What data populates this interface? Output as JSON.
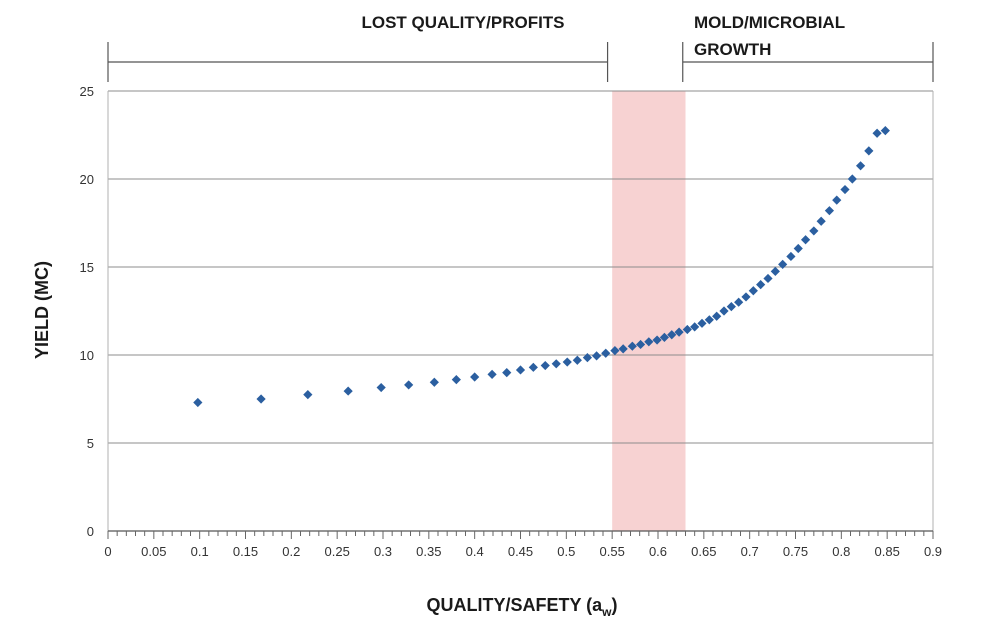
{
  "chart_data": {
    "type": "scatter",
    "title": "",
    "xlabel": "QUALITY/SAFETY (a",
    "xlabel_subscript": "w",
    "xlabel_suffix": ")",
    "ylabel": "YIELD (MC)",
    "xlim": [
      0,
      0.9
    ],
    "ylim": [
      0,
      25
    ],
    "x_ticks": [
      0,
      0.05,
      0.1,
      0.15,
      0.2,
      0.25,
      0.3,
      0.35,
      0.4,
      0.45,
      0.5,
      0.55,
      0.6,
      0.65,
      0.7,
      0.75,
      0.8,
      0.85,
      0.9
    ],
    "x_tick_labels": [
      "0",
      "0.05",
      "0.1",
      "0.15",
      "0.2",
      "0.25",
      "0.3",
      "0.35",
      "0.4",
      "0.45",
      "0.5",
      "0.55",
      "0.6",
      "0.65",
      "0.7",
      "0.75",
      "0.8",
      "0.85",
      "0.9"
    ],
    "y_ticks": [
      0,
      5,
      10,
      15,
      20,
      25
    ],
    "y_tick_labels": [
      "0",
      "5",
      "10",
      "15",
      "20",
      "25"
    ],
    "grid": "horizontal",
    "marker_color": "#2b5fa0",
    "shaded_band": {
      "x_from": 0.55,
      "x_to": 0.63,
      "color": "#f7d2d2"
    },
    "regions": [
      {
        "label": "LOST QUALITY/PROFITS",
        "x_from": 0.0,
        "x_to": 0.545
      },
      {
        "label_line1": "MOLD/MICROBIAL",
        "label_line2": "GROWTH",
        "x_from": 0.627,
        "x_to": 0.9
      }
    ],
    "series": [
      {
        "name": "Yield",
        "x": [
          0.098,
          0.167,
          0.218,
          0.262,
          0.298,
          0.328,
          0.356,
          0.38,
          0.4,
          0.419,
          0.435,
          0.45,
          0.464,
          0.477,
          0.489,
          0.501,
          0.512,
          0.523,
          0.533,
          0.543,
          0.553,
          0.562,
          0.572,
          0.581,
          0.59,
          0.599,
          0.607,
          0.615,
          0.623,
          0.632,
          0.64,
          0.648,
          0.656,
          0.664,
          0.672,
          0.68,
          0.688,
          0.696,
          0.704,
          0.712,
          0.72,
          0.728,
          0.736,
          0.745,
          0.753,
          0.761,
          0.77,
          0.778,
          0.787,
          0.795,
          0.804,
          0.812,
          0.821,
          0.83,
          0.839,
          0.848
        ],
        "y": [
          7.3,
          7.5,
          7.75,
          7.95,
          8.15,
          8.3,
          8.45,
          8.6,
          8.75,
          8.9,
          9.0,
          9.15,
          9.3,
          9.4,
          9.5,
          9.6,
          9.7,
          9.85,
          9.95,
          10.1,
          10.25,
          10.35,
          10.5,
          10.6,
          10.75,
          10.85,
          11.0,
          11.15,
          11.3,
          11.45,
          11.6,
          11.8,
          12.0,
          12.2,
          12.5,
          12.75,
          13.0,
          13.3,
          13.65,
          14.0,
          14.35,
          14.75,
          15.15,
          15.6,
          16.05,
          16.55,
          17.05,
          17.6,
          18.2,
          18.8,
          19.4,
          20.0,
          20.75,
          21.6,
          22.6,
          22.75
        ]
      }
    ]
  }
}
